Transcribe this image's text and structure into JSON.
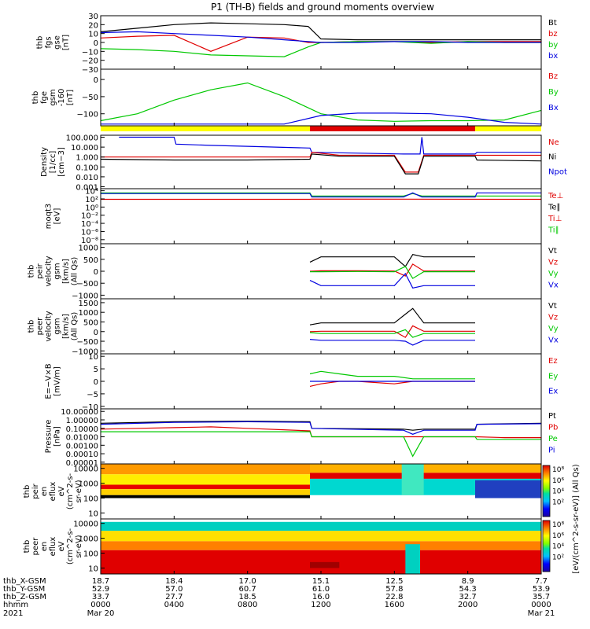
{
  "title": "P1 (TH-B) fields and ground moments overview",
  "colors": {
    "black": "#000000",
    "red": "#e00000",
    "green": "#00c800",
    "blue": "#0000e0",
    "yellow": "#ffff00",
    "orange": "#ff8000"
  },
  "chart_data": [
    {
      "type": "line",
      "ylabel": [
        "thb",
        "fgs",
        "gse",
        "[nT]"
      ],
      "yticks": [
        "30",
        "20",
        "10",
        "0",
        "−10",
        "−20",
        "−30"
      ],
      "legend": [
        {
          "name": "Bt",
          "color": "black"
        },
        {
          "name": "bz",
          "color": "red"
        },
        {
          "name": "by",
          "color": "green"
        },
        {
          "name": "bx",
          "color": "blue"
        }
      ],
      "series": [
        {
          "name": "Bt",
          "color": "black",
          "x": [
            0,
            2,
            4,
            6,
            8,
            10,
            11.3,
            12,
            14,
            16,
            18,
            20,
            22,
            24
          ],
          "y": [
            12,
            16,
            20,
            22,
            21,
            20,
            18,
            4,
            3,
            3,
            3,
            3,
            3,
            3
          ]
        },
        {
          "name": "bz",
          "color": "red",
          "x": [
            0,
            2,
            4,
            6,
            8,
            10,
            11.3,
            12,
            14,
            16,
            18,
            20,
            22,
            24
          ],
          "y": [
            5,
            7,
            8,
            -10,
            6,
            5,
            0,
            0,
            1,
            1,
            0,
            1,
            1,
            1
          ]
        },
        {
          "name": "by",
          "color": "green",
          "x": [
            0,
            2,
            4,
            6,
            8,
            10,
            11.3,
            12,
            14,
            16,
            18,
            20,
            22,
            24
          ],
          "y": [
            -7,
            -8,
            -10,
            -14,
            -15,
            -16,
            -5,
            0,
            1,
            1,
            -1,
            1,
            0,
            0
          ]
        },
        {
          "name": "bx",
          "color": "blue",
          "x": [
            0,
            2,
            4,
            6,
            8,
            10,
            11.3,
            12,
            14,
            16,
            18,
            20,
            22,
            24
          ],
          "y": [
            11,
            12,
            10,
            8,
            6,
            3,
            1,
            0,
            0,
            1,
            1,
            0,
            0,
            0
          ]
        }
      ]
    },
    {
      "type": "line",
      "ylabel": [
        "thb",
        "fge",
        "gsm",
        "-160",
        "[nT]"
      ],
      "yticks": [
        "0",
        "−50",
        "−100"
      ],
      "legend": [
        {
          "name": "Bz",
          "color": "red"
        },
        {
          "name": "By",
          "color": "green"
        },
        {
          "name": "Bx",
          "color": "blue"
        }
      ],
      "series": [
        {
          "name": "By",
          "color": "green",
          "x": [
            0,
            2,
            4,
            6,
            8,
            10,
            12,
            14,
            16,
            18,
            20,
            22,
            24
          ],
          "y": [
            -120,
            -100,
            -60,
            -30,
            -10,
            -50,
            -100,
            -118,
            -122,
            -120,
            -120,
            -118,
            -90
          ]
        },
        {
          "name": "Bx",
          "color": "blue",
          "x": [
            0,
            10,
            12,
            14,
            16,
            18,
            20,
            22,
            24
          ],
          "y": [
            -130,
            -130,
            -105,
            -98,
            -98,
            -100,
            -110,
            -125,
            -130
          ]
        }
      ],
      "bar": [
        {
          "x0": 0,
          "x1": 11.4,
          "color": "yellow"
        },
        {
          "x0": 11.4,
          "x1": 20.4,
          "color": "red"
        },
        {
          "x0": 20.4,
          "x1": 24,
          "color": "yellow"
        }
      ]
    },
    {
      "type": "line",
      "ylabel": [
        "Density",
        "[1/cc]",
        "[cm−3]"
      ],
      "yticks": [
        "100.000",
        "10.000",
        "1.000",
        "0.100",
        "0.010",
        "0.001"
      ],
      "legend": [
        {
          "name": "Ne",
          "color": "red"
        },
        {
          "name": "Ni",
          "color": "black"
        },
        {
          "name": "Npot",
          "color": "blue"
        }
      ],
      "series": [
        {
          "name": "Npot",
          "color": "blue",
          "x": [
            1,
            4,
            4.1,
            6,
            8,
            11.4,
            11.5,
            16.5,
            17.4,
            17.5,
            17.6,
            20.4,
            20.5,
            24
          ],
          "y": [
            100,
            100,
            20,
            15,
            12,
            8,
            3,
            2,
            2,
            100,
            2,
            2,
            3,
            3
          ]
        },
        {
          "name": "Ne",
          "color": "red",
          "x": [
            0,
            4,
            8,
            11.4,
            11.5,
            13,
            16,
            16.6,
            17.3,
            17.6,
            20.4,
            24
          ],
          "y": [
            1,
            1,
            1,
            1,
            3,
            1.5,
            1.5,
            0.03,
            0.03,
            1.5,
            1.5,
            1.5
          ]
        },
        {
          "name": "Ni",
          "color": "black",
          "x": [
            0,
            4,
            8,
            11.4,
            11.5,
            13,
            16,
            16.6,
            17.3,
            17.6,
            20.4,
            20.5,
            24
          ],
          "y": [
            0.6,
            0.5,
            0.5,
            0.6,
            2,
            1.2,
            1.2,
            0.02,
            0.02,
            1.2,
            1.2,
            0.5,
            0.4
          ]
        }
      ]
    },
    {
      "type": "line",
      "ylabel": [
        "moqt3",
        "[eV]"
      ],
      "yticks": [
        "10⁴",
        "10²",
        "10⁰",
        "10⁻²",
        "10⁻⁴",
        "10⁻⁶",
        "10⁻⁸"
      ],
      "legend": [
        {
          "name": "Te⊥",
          "color": "red"
        },
        {
          "name": "Te∥",
          "color": "black"
        },
        {
          "name": "Ti⊥",
          "color": "red"
        },
        {
          "name": "Ti∥",
          "color": "green"
        }
      ],
      "series": [
        {
          "name": "Ti∥",
          "color": "green",
          "x": [
            0,
            11.4,
            11.5,
            16.5,
            17,
            17.5,
            20.4,
            24
          ],
          "y": [
            3000,
            3000,
            500,
            500,
            2000,
            500,
            500,
            500
          ]
        },
        {
          "name": "Npot",
          "color": "blue",
          "x": [
            0,
            11.4,
            11.5,
            16.5,
            17,
            17.5,
            20.4,
            20.5,
            24
          ],
          "y": [
            2000,
            2000,
            300,
            300,
            3000,
            300,
            300,
            3000,
            3000
          ]
        },
        {
          "name": "Te⊥",
          "color": "red",
          "x": [
            0,
            11.4,
            11.5,
            24
          ],
          "y": [
            80,
            80,
            90,
            80
          ]
        }
      ]
    },
    {
      "type": "line",
      "ylabel": [
        "thb",
        "peir",
        "velocity",
        "gsm",
        "[km/s]",
        "(All Qs)"
      ],
      "yticks": [
        "1000",
        "500",
        "0",
        "−500",
        "−1000"
      ],
      "legend": [
        {
          "name": "Vt",
          "color": "black"
        },
        {
          "name": "Vz",
          "color": "red"
        },
        {
          "name": "Vy",
          "color": "green"
        },
        {
          "name": "Vx",
          "color": "blue"
        }
      ],
      "series": [
        {
          "name": "Vt",
          "color": "black",
          "x": [
            11.4,
            12,
            14,
            16,
            16.6,
            17,
            17.6,
            20.4
          ],
          "y": [
            380,
            600,
            600,
            600,
            200,
            700,
            600,
            600
          ]
        },
        {
          "name": "Vz",
          "color": "red",
          "x": [
            11.4,
            12,
            14,
            16,
            16.6,
            17,
            17.6,
            20.4
          ],
          "y": [
            0,
            20,
            20,
            10,
            -200,
            300,
            10,
            10
          ]
        },
        {
          "name": "Vy",
          "color": "green",
          "x": [
            11.4,
            12,
            14,
            16,
            16.6,
            17,
            17.6,
            20.4
          ],
          "y": [
            -20,
            -20,
            -10,
            -20,
            200,
            -300,
            -20,
            -20
          ]
        },
        {
          "name": "Vx",
          "color": "blue",
          "x": [
            11.4,
            12,
            14,
            16,
            16.6,
            17,
            17.6,
            20.4
          ],
          "y": [
            -380,
            -600,
            -600,
            -600,
            -100,
            -700,
            -600,
            -600
          ]
        }
      ]
    },
    {
      "type": "line",
      "ylabel": [
        "thb",
        "peer",
        "velocity",
        "gsm",
        "[km/s]",
        "(All Qs)"
      ],
      "yticks": [
        "1500",
        "1000",
        "500",
        "0",
        "−500",
        "−1000"
      ],
      "legend": [
        {
          "name": "Vt",
          "color": "black"
        },
        {
          "name": "Vz",
          "color": "red"
        },
        {
          "name": "Vy",
          "color": "green"
        },
        {
          "name": "Vx",
          "color": "blue"
        }
      ],
      "series": [
        {
          "name": "Vt",
          "color": "black",
          "x": [
            11.4,
            12,
            14,
            16,
            16.6,
            17,
            17.6,
            20.4
          ],
          "y": [
            350,
            450,
            450,
            450,
            900,
            1200,
            450,
            450
          ]
        },
        {
          "name": "Vz",
          "color": "red",
          "x": [
            11.4,
            12,
            14,
            16,
            16.6,
            17,
            17.6,
            20.4
          ],
          "y": [
            0,
            20,
            20,
            20,
            -300,
            300,
            20,
            20
          ]
        },
        {
          "name": "Vy",
          "color": "green",
          "x": [
            11.4,
            12,
            14,
            16,
            16.6,
            17,
            17.6,
            20.4
          ],
          "y": [
            -50,
            -100,
            -100,
            -100,
            100,
            -300,
            -100,
            -100
          ]
        },
        {
          "name": "Vx",
          "color": "blue",
          "x": [
            11.4,
            12,
            14,
            16,
            16.6,
            17,
            17.6,
            20.4
          ],
          "y": [
            -400,
            -450,
            -450,
            -450,
            -500,
            -700,
            -450,
            -450
          ]
        }
      ]
    },
    {
      "type": "line",
      "ylabel": [
        "E=−V×B",
        "[mV/m]"
      ],
      "yticks": [
        "10",
        "5",
        "0",
        "−5",
        "−10"
      ],
      "legend": [
        {
          "name": "Ez",
          "color": "red"
        },
        {
          "name": "Ey",
          "color": "green"
        },
        {
          "name": "Ex",
          "color": "blue"
        }
      ],
      "series": [
        {
          "name": "Ey",
          "color": "green",
          "x": [
            11.4,
            12,
            13,
            14,
            16,
            17,
            18,
            20.4
          ],
          "y": [
            3,
            4,
            3,
            2,
            2,
            1,
            1,
            1
          ]
        },
        {
          "name": "Ez",
          "color": "red",
          "x": [
            11.4,
            12,
            13,
            14,
            16,
            17,
            18,
            20.4
          ],
          "y": [
            -2,
            -1,
            0,
            0,
            -1,
            0,
            0,
            0
          ]
        },
        {
          "name": "Ex",
          "color": "blue",
          "x": [
            11.4,
            12,
            14,
            16,
            17,
            18,
            20.4
          ],
          "y": [
            0,
            0,
            0,
            0,
            0,
            0,
            0
          ]
        }
      ]
    },
    {
      "type": "line",
      "ylabel": [
        "Pressure",
        "[nPa]"
      ],
      "yticks": [
        "10.00000",
        "1.00000",
        "0.10000",
        "0.01000",
        "0.00100",
        "0.00010",
        "0.00001"
      ],
      "legend": [
        {
          "name": "Pt",
          "color": "black"
        },
        {
          "name": "Pb",
          "color": "red"
        },
        {
          "name": "Pe",
          "color": "green"
        },
        {
          "name": "Pi",
          "color": "blue"
        }
      ],
      "series": [
        {
          "name": "Pt",
          "color": "black",
          "x": [
            0,
            4,
            8,
            11.4,
            11.5,
            16.5,
            17,
            17.6,
            20.4,
            20.5,
            24
          ],
          "y": [
            0.4,
            0.6,
            0.7,
            0.6,
            0.1,
            0.08,
            0.06,
            0.08,
            0.08,
            0.3,
            0.4
          ]
        },
        {
          "name": "Pi",
          "color": "blue",
          "x": [
            0,
            4,
            8,
            11.4,
            11.5,
            16.5,
            17,
            17.6,
            20.4,
            20.5,
            24
          ],
          "y": [
            0.3,
            0.5,
            0.6,
            0.5,
            0.1,
            0.06,
            0.02,
            0.06,
            0.06,
            0.3,
            0.35
          ]
        },
        {
          "name": "Pb",
          "color": "red",
          "x": [
            0,
            2,
            4,
            6,
            8,
            11.4,
            11.5,
            14,
            16,
            18,
            20.4,
            22,
            24
          ],
          "y": [
            0.08,
            0.1,
            0.12,
            0.15,
            0.1,
            0.05,
            0.01,
            0.01,
            0.01,
            0.01,
            0.01,
            0.008,
            0.008
          ]
        },
        {
          "name": "Pe",
          "color": "green",
          "x": [
            0,
            4,
            8,
            11.4,
            11.5,
            16.5,
            17,
            17.6,
            20.4,
            20.5,
            24
          ],
          "y": [
            0.04,
            0.04,
            0.04,
            0.04,
            0.01,
            0.01,
            5e-05,
            0.01,
            0.01,
            0.005,
            0.005
          ]
        }
      ]
    },
    {
      "type": "heatmap",
      "ylabel": [
        "thb",
        "peir",
        "en",
        "eflux",
        "eV",
        "(cm^2-s-",
        "sr-eV)"
      ],
      "yticks": [
        "10000",
        "1000",
        "100",
        "10"
      ]
    },
    {
      "type": "heatmap",
      "ylabel": [
        "thb",
        "peer",
        "en",
        "eflux",
        "eV",
        "(cm^2-s-",
        "sr-eV)"
      ],
      "yticks": [
        "10000",
        "1000",
        "100",
        "10"
      ]
    }
  ],
  "colorbar": {
    "label": "[eV/(cm^2-s-sr-eV)] (All Qs)",
    "ticks_top": [
      "10⁸",
      "10⁶",
      "10⁴",
      "10²"
    ],
    "ticks_bottom": [
      "10⁸",
      "10⁶",
      "10⁴",
      "10²"
    ]
  },
  "xaxis": {
    "row_labels": [
      "thb_X-GSM",
      "thb_Y-GSM",
      "thb_Z-GSM",
      "hhmm",
      "2021"
    ],
    "columns": [
      {
        "x": "18.7",
        "y": "52.9",
        "z": "33.7",
        "hhmm": "0000",
        "date": "Mar 20"
      },
      {
        "x": "18.4",
        "y": "57.0",
        "z": "27.7",
        "hhmm": "0400",
        "date": ""
      },
      {
        "x": "17.0",
        "y": "60.7",
        "z": "18.5",
        "hhmm": "0800",
        "date": ""
      },
      {
        "x": "15.1",
        "y": "61.0",
        "z": "16.0",
        "hhmm": "1200",
        "date": ""
      },
      {
        "x": "12.5",
        "y": "57.8",
        "z": "22.8",
        "hhmm": "1600",
        "date": ""
      },
      {
        "x": "8.9",
        "y": "54.3",
        "z": "32.7",
        "hhmm": "2000",
        "date": ""
      },
      {
        "x": "7.7",
        "y": "53.9",
        "z": "35.7",
        "hhmm": "0000",
        "date": "Mar 21"
      }
    ]
  }
}
